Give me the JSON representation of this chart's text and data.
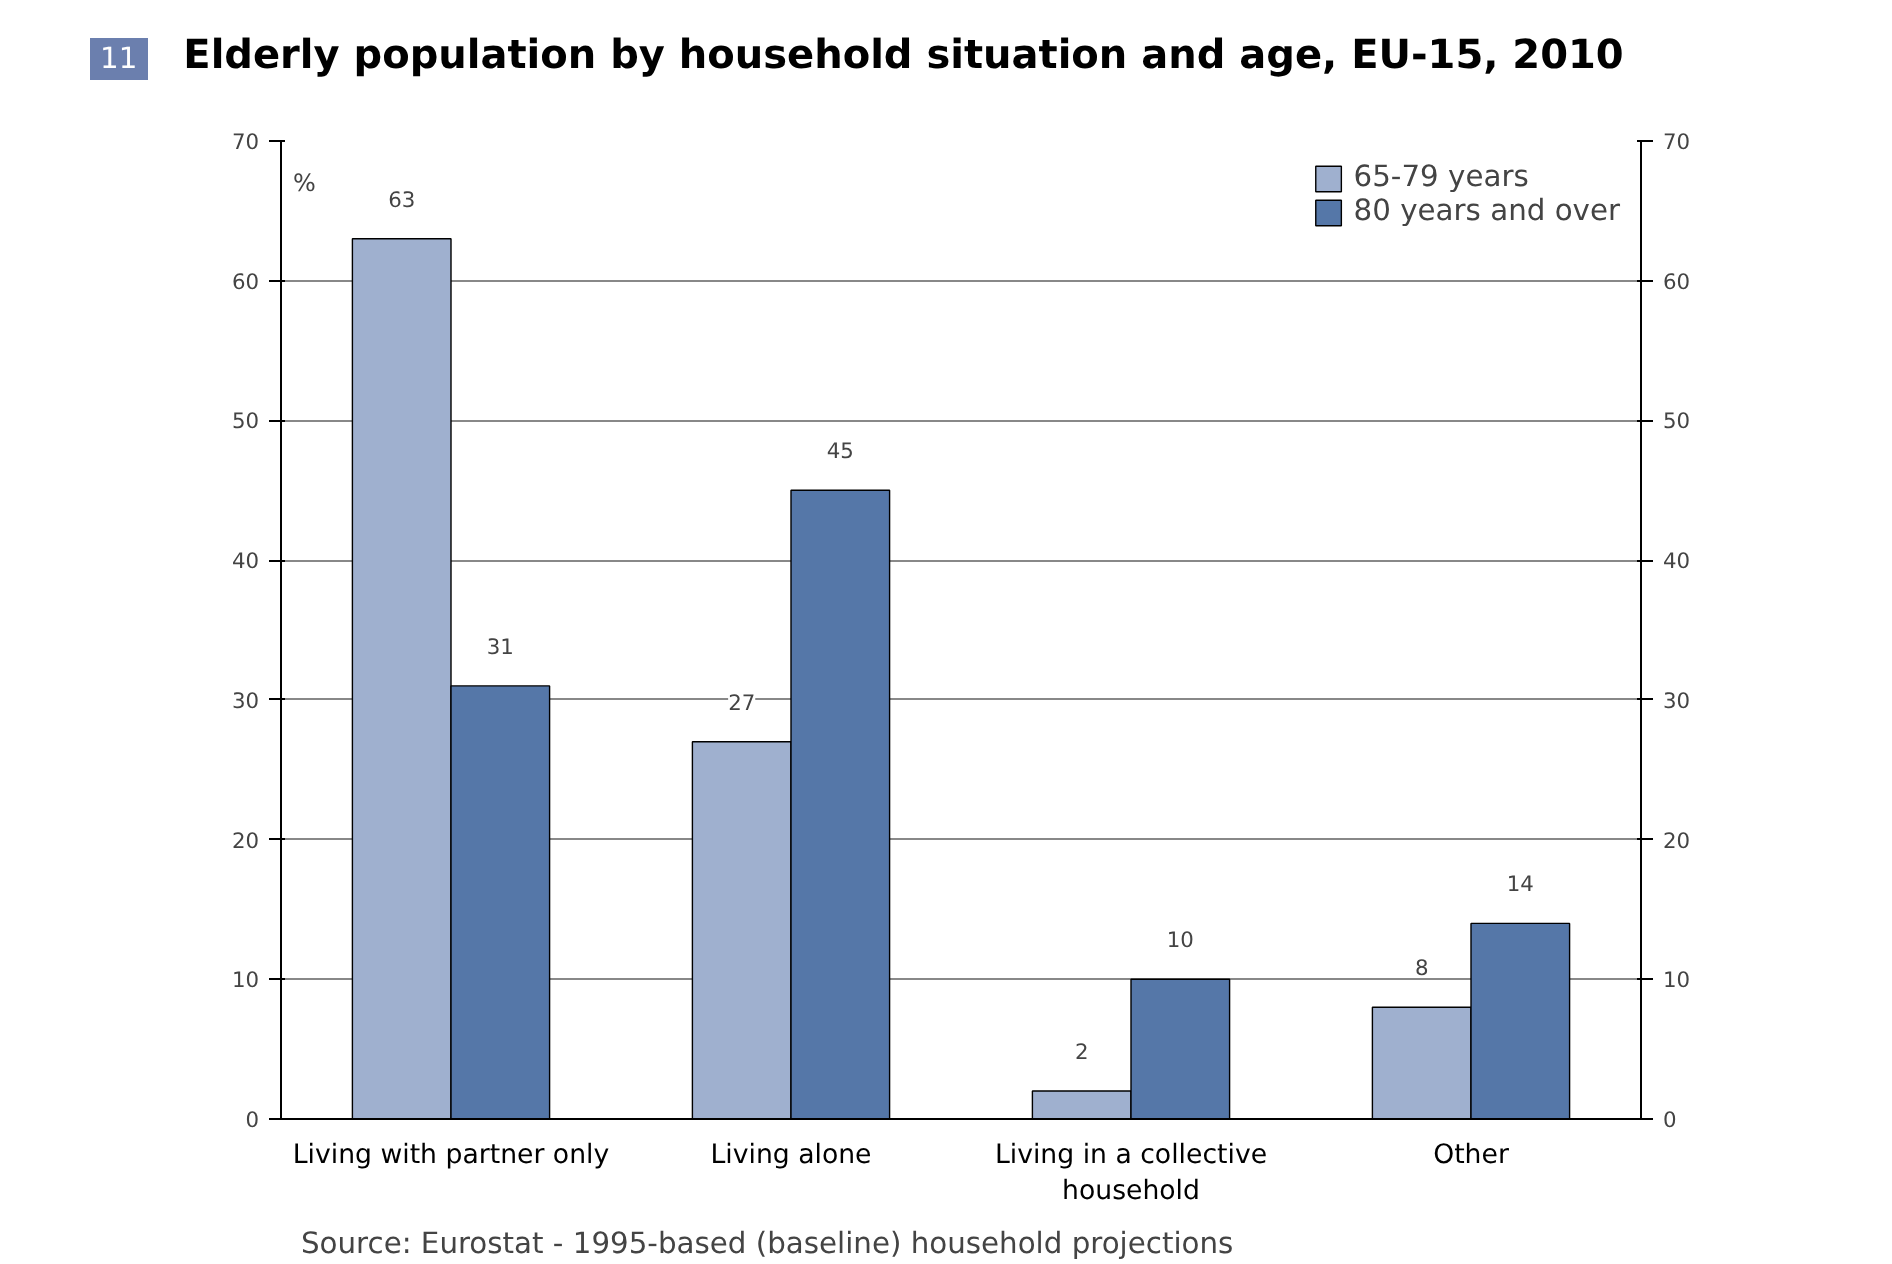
{
  "chart_data": {
    "type": "bar",
    "title": "Elderly population by household situation and age, EU-15, 2010",
    "ylabel": "%",
    "categories": [
      "Living with partner only",
      "Living alone",
      "Living in a collective household",
      "Other"
    ],
    "series": [
      {
        "name": "65-79 years",
        "color": "#9fb0cf",
        "values": [
          63,
          27,
          2,
          8
        ]
      },
      {
        "name": "80 years and over",
        "color": "#5577a8",
        "values": [
          31,
          45,
          10,
          14
        ]
      }
    ],
    "ylim": [
      0,
      70
    ],
    "yticks": [
      0,
      10,
      20,
      30,
      40,
      50,
      60,
      70
    ],
    "y2lim": [
      0,
      70
    ],
    "y2ticks": [
      0,
      10,
      20,
      30,
      40,
      50,
      60,
      70
    ],
    "grid": "y",
    "legend": "top right",
    "data_labels": true,
    "annotations": [
      "11",
      "Source: Eurostat - 1995-based (baseline) household projections"
    ]
  }
}
